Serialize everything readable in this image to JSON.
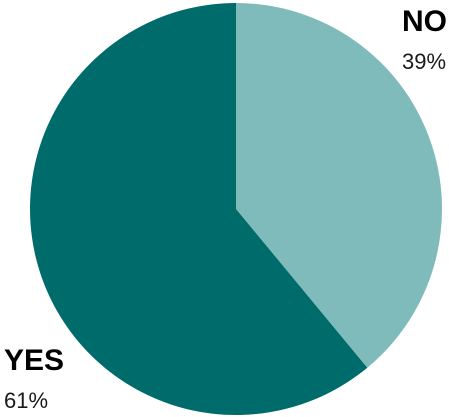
{
  "chart_data": {
    "type": "pie",
    "slices": [
      {
        "label": "NO",
        "value": 39,
        "value_label": "39%",
        "color": "#80bbbb"
      },
      {
        "label": "YES",
        "value": 61,
        "value_label": "61%",
        "color": "#006b6b"
      }
    ],
    "start_angle_deg": 0,
    "direction": "clockwise",
    "legend": "none"
  }
}
